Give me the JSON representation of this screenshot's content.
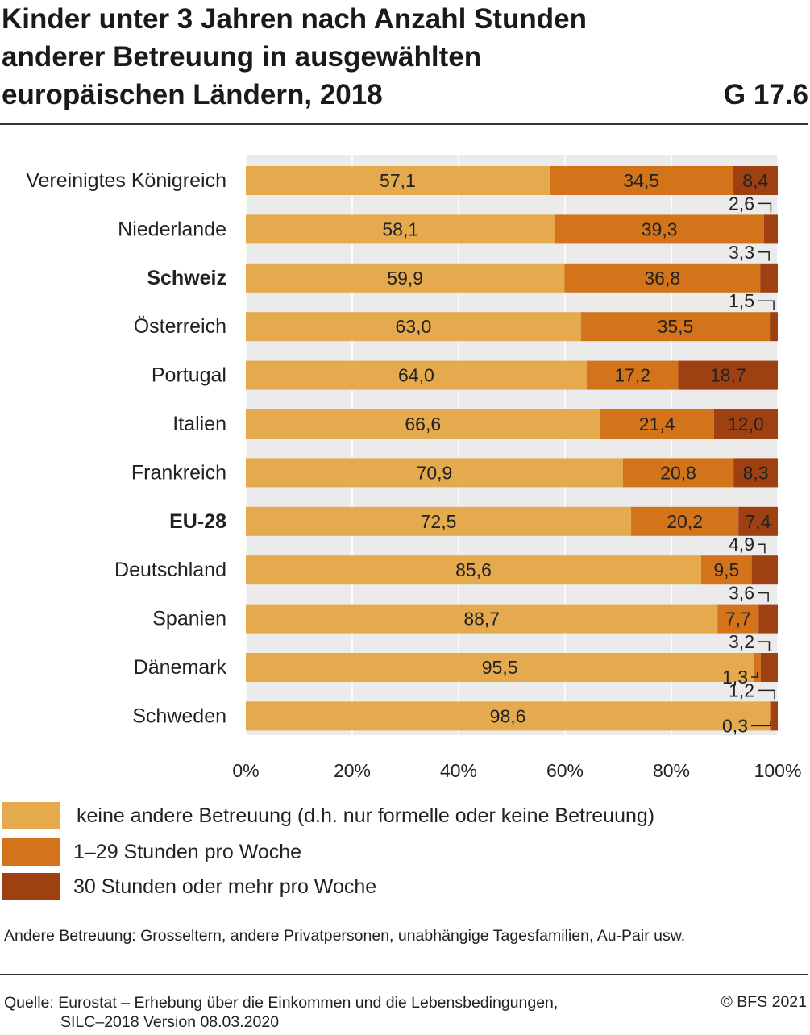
{
  "header": {
    "title": "Kinder unter 3 Jahren nach Anzahl Stunden anderer Betreuung in ausgewählten europäischen Ländern, 2018",
    "code": "G 17.6"
  },
  "colors": {
    "none": "#e5a94e",
    "low": "#d3741b",
    "high": "#9f4013",
    "plot_background": "#ebebeb",
    "gridline": "#ffffff"
  },
  "chart_data": {
    "type": "bar",
    "orientation": "horizontal",
    "stacked": true,
    "categories": [
      "Vereinigtes Königreich",
      "Niederlande",
      "Schweiz",
      "Österreich",
      "Portugal",
      "Italien",
      "Frankreich",
      "EU-28",
      "Deutschland",
      "Spanien",
      "Dänemark",
      "Schweden"
    ],
    "bold_categories": [
      "Schweiz",
      "EU-28"
    ],
    "series": [
      {
        "name": "keine andere Betreuung (d.h. nur formelle oder keine Betreuung)",
        "color": "#e5a94e",
        "values": [
          57.1,
          58.1,
          59.9,
          63.0,
          64.0,
          66.6,
          70.9,
          72.5,
          85.6,
          88.7,
          95.5,
          98.6
        ]
      },
      {
        "name": "1–29 Stunden pro Woche",
        "color": "#d3741b",
        "values": [
          34.5,
          39.3,
          36.8,
          35.5,
          17.2,
          21.4,
          20.8,
          20.2,
          9.5,
          7.7,
          1.3,
          0.3
        ]
      },
      {
        "name": "30 Stunden oder mehr pro Woche",
        "color": "#9f4013",
        "values": [
          8.4,
          2.6,
          3.3,
          1.5,
          18.7,
          12.0,
          8.3,
          7.4,
          4.9,
          3.6,
          3.2,
          1.2
        ]
      }
    ],
    "data_labels": [
      [
        "57,1",
        "34,5",
        "8,4"
      ],
      [
        "58,1",
        "39,3",
        "2,6"
      ],
      [
        "59,9",
        "36,8",
        "3,3"
      ],
      [
        "63,0",
        "35,5",
        "1,5"
      ],
      [
        "64,0",
        "17,2",
        "18,7"
      ],
      [
        "66,6",
        "21,4",
        "12,0"
      ],
      [
        "70,9",
        "20,8",
        "8,3"
      ],
      [
        "72,5",
        "20,2",
        "7,4"
      ],
      [
        "85,6",
        "9,5",
        "4,9"
      ],
      [
        "88,7",
        "7,7",
        "3,6"
      ],
      [
        "95,5",
        "1,3",
        "3,2"
      ],
      [
        "98,6",
        "0,3",
        "1,2"
      ]
    ],
    "label_outside": [
      [
        false,
        false,
        false
      ],
      [
        false,
        false,
        true
      ],
      [
        false,
        false,
        true
      ],
      [
        false,
        false,
        true
      ],
      [
        false,
        false,
        false
      ],
      [
        false,
        false,
        false
      ],
      [
        false,
        false,
        false
      ],
      [
        false,
        false,
        false
      ],
      [
        false,
        false,
        true
      ],
      [
        false,
        false,
        true
      ],
      [
        false,
        true,
        true
      ],
      [
        false,
        true,
        true
      ]
    ],
    "xlim": [
      0,
      100
    ],
    "xticks": [
      0,
      20,
      40,
      60,
      80,
      100
    ],
    "xtick_labels": [
      "0%",
      "20%",
      "40%",
      "60%",
      "80%",
      "100%"
    ],
    "grid": true,
    "legend_position": "bottom"
  },
  "legend": {
    "items": [
      "keine andere Betreuung (d.h. nur formelle oder keine Betreuung)",
      "1–29 Stunden pro Woche",
      "30 Stunden oder mehr pro Woche"
    ]
  },
  "footer": {
    "note": "Andere Betreuung: Grosseltern, andere Privatpersonen, unabhängige Tagesfamilien, Au-Pair usw.",
    "source_line1": "Quelle: Eurostat – Erhebung über die Einkommen und die Lebensbedingungen,",
    "source_line2": "SILC–2018 Version 08.03.2020",
    "copyright": "© BFS 2021"
  }
}
